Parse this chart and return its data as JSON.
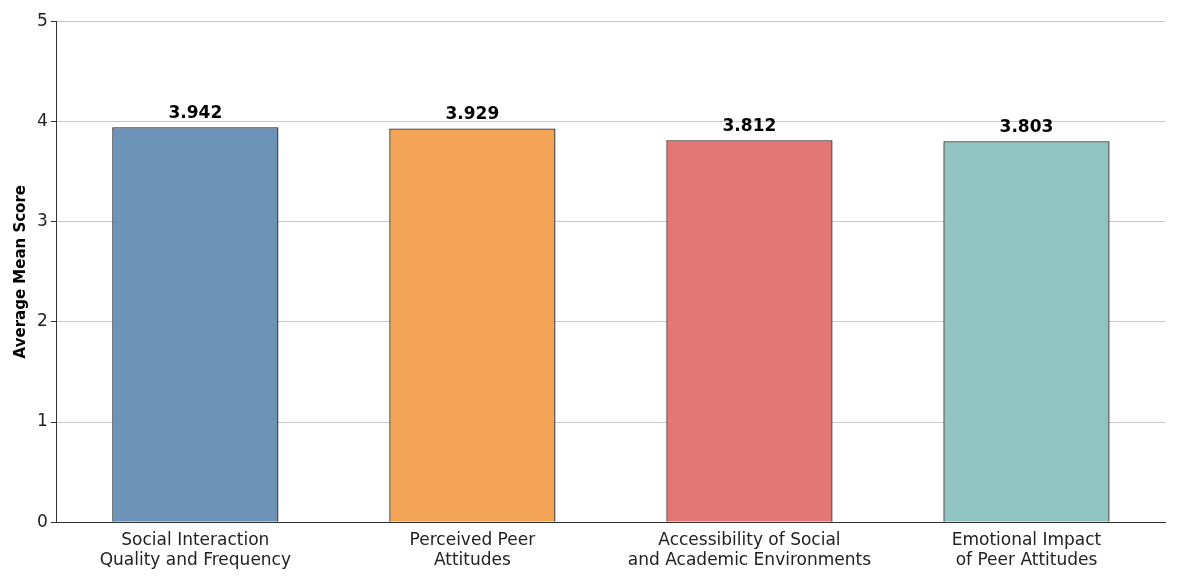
{
  "chart_data": {
    "type": "bar",
    "ylabel": "Average Mean Score",
    "categories": [
      "Social Interaction Quality and Frequency",
      "Perceived Peer Attitudes",
      "Accessibility of Social and Academic Environments",
      "Emotional Impact of Peer Attitudes"
    ],
    "values": [
      3.942,
      3.929,
      3.812,
      3.803
    ],
    "colors": [
      "#6e93b9",
      "#f2a354",
      "#e57676",
      "#8fc4c0"
    ],
    "ylim": [
      0,
      5
    ],
    "yticks": [
      0,
      1,
      2,
      3,
      4,
      5
    ],
    "grid": "y",
    "data_labels": true,
    "legend": false
  }
}
